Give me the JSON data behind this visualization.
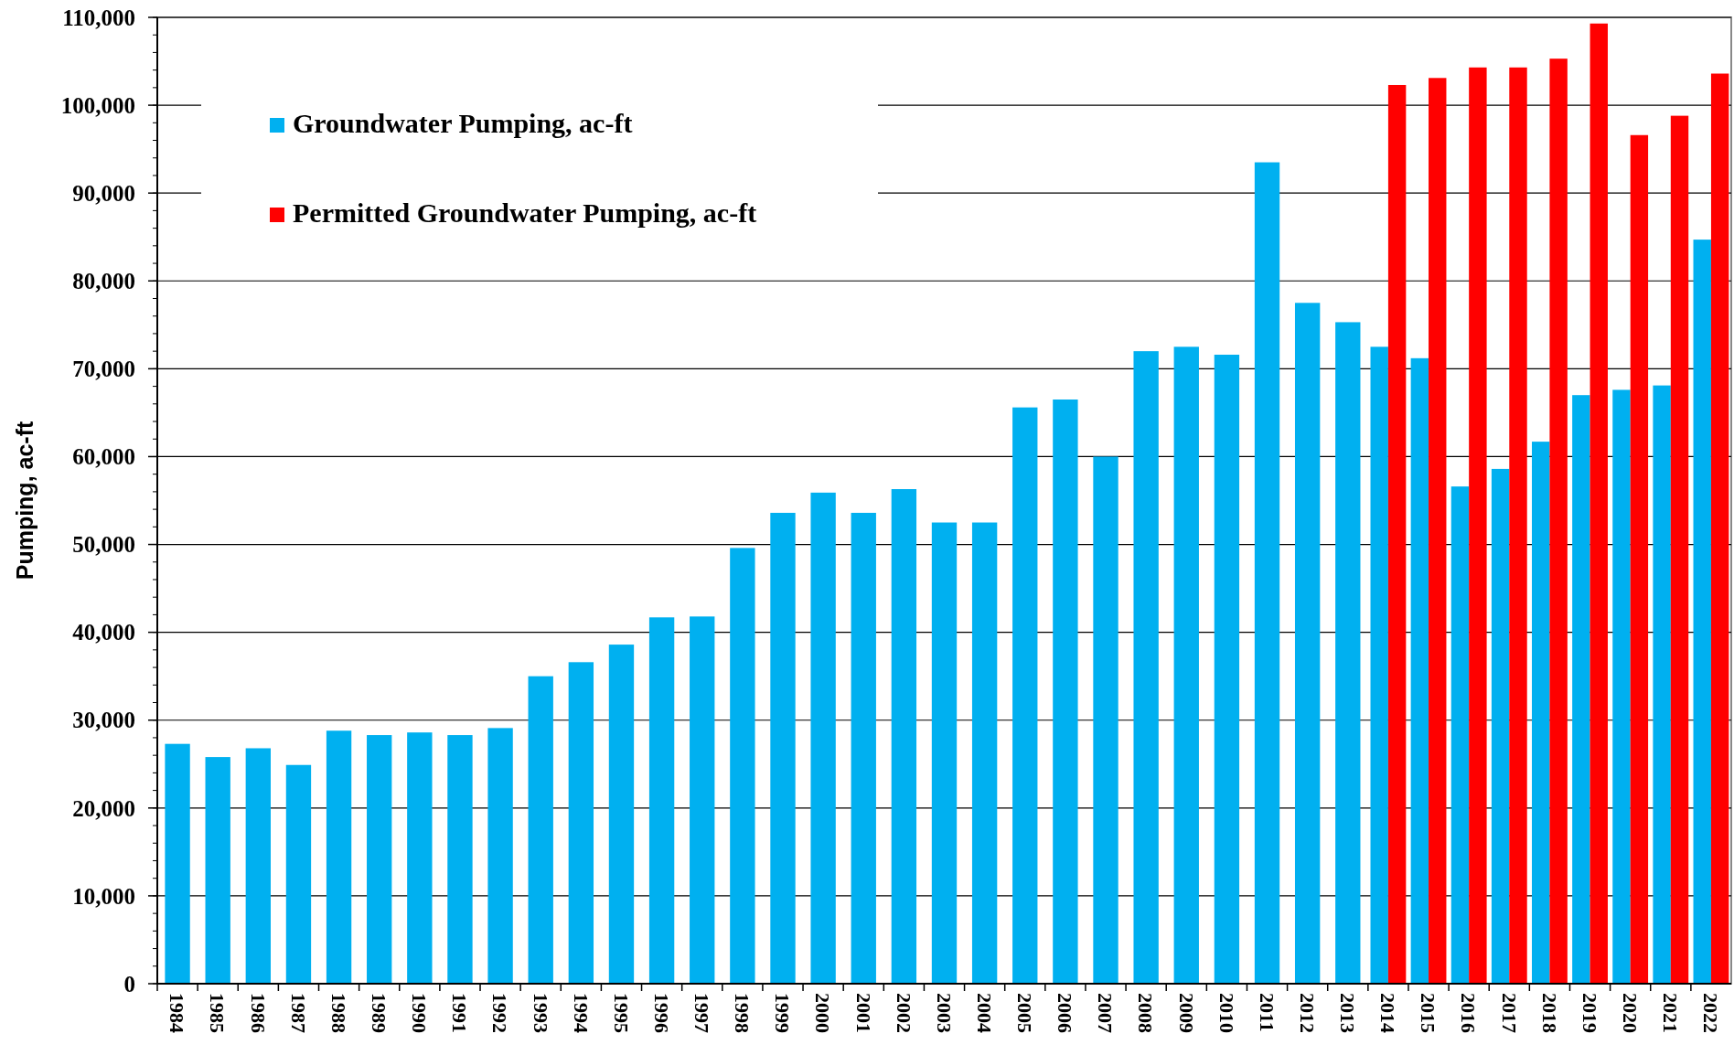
{
  "chart_data": {
    "type": "bar",
    "ylabel": "Pumping, ac-ft",
    "categories": [
      "1984",
      "1985",
      "1986",
      "1987",
      "1988",
      "1989",
      "1990",
      "1991",
      "1992",
      "1993",
      "1994",
      "1995",
      "1996",
      "1997",
      "1998",
      "1999",
      "2000",
      "2001",
      "2002",
      "2003",
      "2004",
      "2005",
      "2006",
      "2007",
      "2008",
      "2009",
      "2010",
      "2011",
      "2012",
      "2013",
      "2014",
      "2015",
      "2016",
      "2017",
      "2018",
      "2019",
      "2020",
      "2021",
      "2022"
    ],
    "series": [
      {
        "name": "Groundwater Pumping, ac-ft",
        "color": "#00b0f0",
        "values": [
          27300,
          25800,
          26800,
          24900,
          28800,
          28300,
          28600,
          28300,
          29100,
          35000,
          36600,
          38600,
          41700,
          41800,
          49600,
          53600,
          55900,
          53600,
          56300,
          52500,
          52500,
          65600,
          66500,
          60000,
          72000,
          72500,
          71600,
          93500,
          77500,
          75300,
          72500,
          71200,
          56600,
          58600,
          61700,
          67000,
          67600,
          68100,
          84700
        ]
      },
      {
        "name": "Permitted Groundwater Pumping, ac-ft",
        "color": "#ff0000",
        "values": [
          null,
          null,
          null,
          null,
          null,
          null,
          null,
          null,
          null,
          null,
          null,
          null,
          null,
          null,
          null,
          null,
          null,
          null,
          null,
          null,
          null,
          null,
          null,
          null,
          null,
          null,
          null,
          null,
          null,
          null,
          102300,
          103100,
          104300,
          104300,
          105300,
          109300,
          96600,
          98800,
          103600
        ]
      }
    ],
    "ylim": [
      0,
      110000
    ],
    "yticks": [
      {
        "value": 0,
        "label": "0"
      },
      {
        "value": 10000,
        "label": "10,000"
      },
      {
        "value": 20000,
        "label": "20,000"
      },
      {
        "value": 30000,
        "label": "30,000"
      },
      {
        "value": 40000,
        "label": "40,000"
      },
      {
        "value": 50000,
        "label": "50,000"
      },
      {
        "value": 60000,
        "label": "60,000"
      },
      {
        "value": 70000,
        "label": "70,000"
      },
      {
        "value": 80000,
        "label": "80,000"
      },
      {
        "value": 90000,
        "label": "90,000"
      },
      {
        "value": 100000,
        "label": "100,000"
      },
      {
        "value": 110000,
        "label": "110,000"
      }
    ],
    "grid": "y",
    "legend": "top left"
  }
}
